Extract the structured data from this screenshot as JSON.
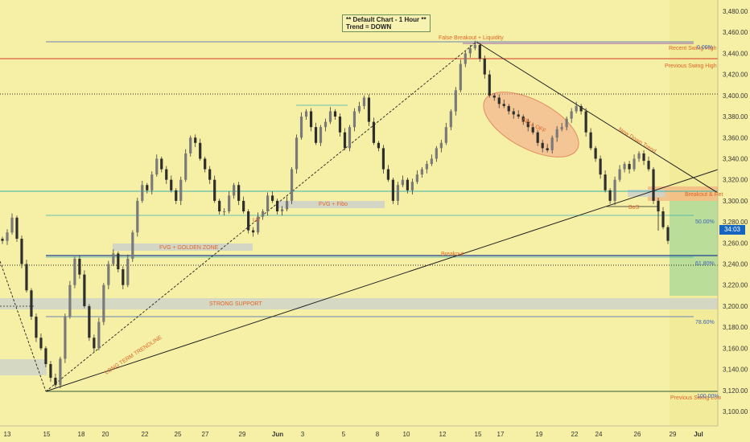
{
  "info_box": {
    "line1": "** Default Chart - 1 Hour **",
    "line2": "Trend = DOWN"
  },
  "current_price": "34:03",
  "colors": {
    "background": "#f6f0a6",
    "candle": "#3a3a3a",
    "red_line": "#d43b2a",
    "blue_line": "#3c63b8",
    "teal_line": "#3ab0b0",
    "zone": "#cfd3c8",
    "projection": "#9ad29a",
    "label": "#e0652a"
  },
  "chart_data": {
    "type": "candlestick",
    "title": "",
    "xlabel": "",
    "ylabel": "",
    "ylim": [
      3092,
      3490
    ],
    "y_ticks": [
      "3,480.00",
      "3,460.00",
      "3,440.00",
      "3,420.00",
      "3,400.00",
      "3,380.00",
      "3,360.00",
      "3,340.00",
      "3,320.00",
      "3,300.00",
      "3,280.00",
      "3,260.00",
      "3,240.00",
      "3,220.00",
      "3,200.00",
      "3,180.00",
      "3,160.00",
      "3,140.00",
      "3,120.00",
      "3,100.00"
    ],
    "x_ticks": [
      "13",
      "15",
      "18",
      "20",
      "22",
      "25",
      "27",
      "29",
      "Jun",
      "3",
      "5",
      "8",
      "10",
      "12",
      "15",
      "17",
      "19",
      "22",
      "24",
      "26",
      "29",
      "Jul"
    ],
    "close_series": [
      3262,
      3270,
      3284,
      3264,
      3240,
      3215,
      3190,
      3170,
      3160,
      3145,
      3132,
      3125,
      3150,
      3190,
      3220,
      3245,
      3230,
      3200,
      3170,
      3160,
      3185,
      3220,
      3240,
      3250,
      3235,
      3220,
      3245,
      3270,
      3300,
      3315,
      3310,
      3325,
      3340,
      3330,
      3320,
      3310,
      3300,
      3320,
      3345,
      3360,
      3355,
      3340,
      3330,
      3320,
      3300,
      3290,
      3290,
      3305,
      3315,
      3300,
      3290,
      3272,
      3270,
      3285,
      3290,
      3305,
      3300,
      3290,
      3292,
      3300,
      3330,
      3360,
      3380,
      3385,
      3370,
      3355,
      3370,
      3375,
      3385,
      3380,
      3365,
      3350,
      3370,
      3385,
      3390,
      3398,
      3375,
      3355,
      3350,
      3330,
      3320,
      3300,
      3315,
      3320,
      3310,
      3318,
      3325,
      3330,
      3335,
      3340,
      3350,
      3355,
      3370,
      3385,
      3405,
      3430,
      3440,
      3445,
      3448,
      3435,
      3420,
      3400,
      3398,
      3392,
      3390,
      3385,
      3382,
      3380,
      3375,
      3370,
      3365,
      3355,
      3350,
      3348,
      3360,
      3368,
      3370,
      3378,
      3385,
      3390,
      3385,
      3365,
      3350,
      3340,
      3325,
      3310,
      3300,
      3320,
      3330,
      3335,
      3330,
      3340,
      3345,
      3338,
      3330,
      3300,
      3290,
      3275,
      3262
    ],
    "annotations": [
      "False Breakout + Liquidity",
      "Recent Swing High",
      "0.00%",
      "Previous Swing High",
      "New Down Trend",
      "Breakout & Ret",
      "FVG + Fibo",
      "BoS",
      "FVG + GOLDEN ZONE",
      "Breakout",
      "STRONG SUPPORT",
      "LONG TERM TRENDLINE",
      "Previous Swing Low",
      "100.00%",
      "50.00%",
      "61.80%",
      "78.60%",
      "LH",
      "SELL OFF"
    ]
  }
}
